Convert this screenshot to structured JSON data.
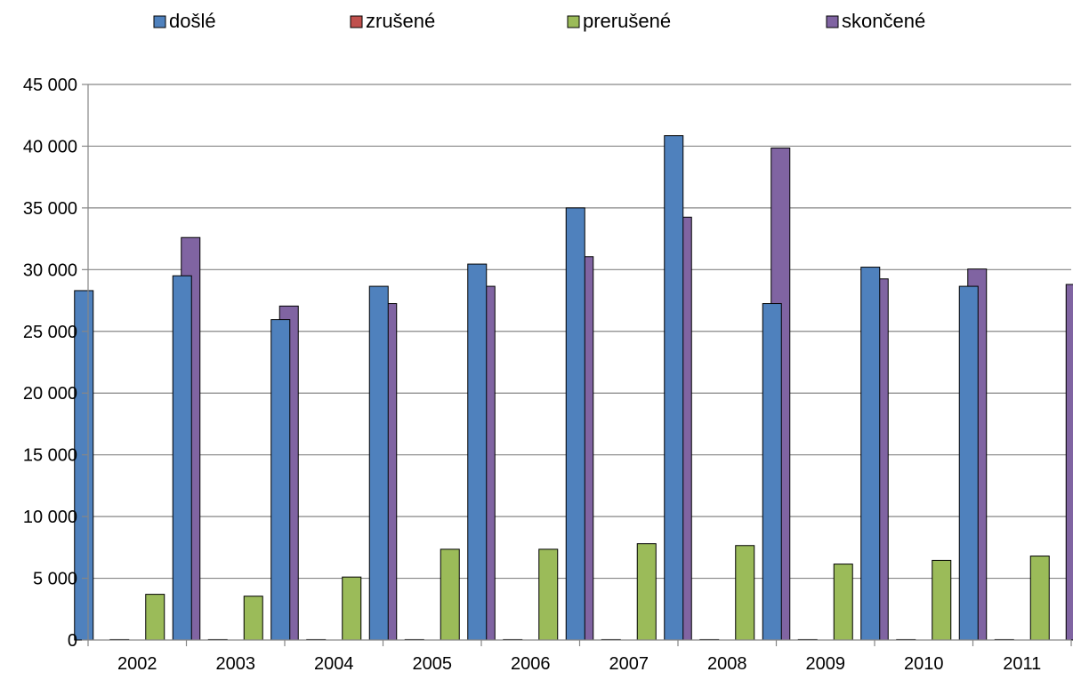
{
  "chart_data": {
    "type": "bar",
    "title": "",
    "xlabel": "",
    "ylabel": "",
    "ylim": [
      0,
      45000
    ],
    "yticks": [
      0,
      5000,
      10000,
      15000,
      20000,
      25000,
      30000,
      35000,
      40000,
      45000
    ],
    "ytick_labels": [
      "0",
      "5 000",
      "10 000",
      "15 000",
      "20 000",
      "25 000",
      "30 000",
      "35 000",
      "40 000",
      "45 000"
    ],
    "grid": true,
    "legend_position": "top",
    "categories": [
      "2002",
      "2003",
      "2004",
      "2005",
      "2006",
      "2007",
      "2008",
      "2009",
      "2010",
      "2011"
    ],
    "series": [
      {
        "name": "došlé",
        "color": "#4F81BD",
        "values": [
          28300,
          29500,
          25950,
          28650,
          30450,
          35000,
          40850,
          27250,
          30200,
          28650
        ]
      },
      {
        "name": "zrušené",
        "color": "#C0504D",
        "values": [
          40,
          40,
          40,
          40,
          40,
          40,
          40,
          40,
          40,
          40
        ]
      },
      {
        "name": "prerušené",
        "color": "#9BBB59",
        "values": [
          3700,
          3550,
          5100,
          7350,
          7350,
          7800,
          7650,
          6150,
          6450,
          6800
        ]
      },
      {
        "name": "skončené",
        "color": "#8064A2",
        "values": [
          32600,
          27050,
          27250,
          28650,
          31050,
          34250,
          39850,
          29250,
          30050,
          28800
        ]
      }
    ]
  }
}
